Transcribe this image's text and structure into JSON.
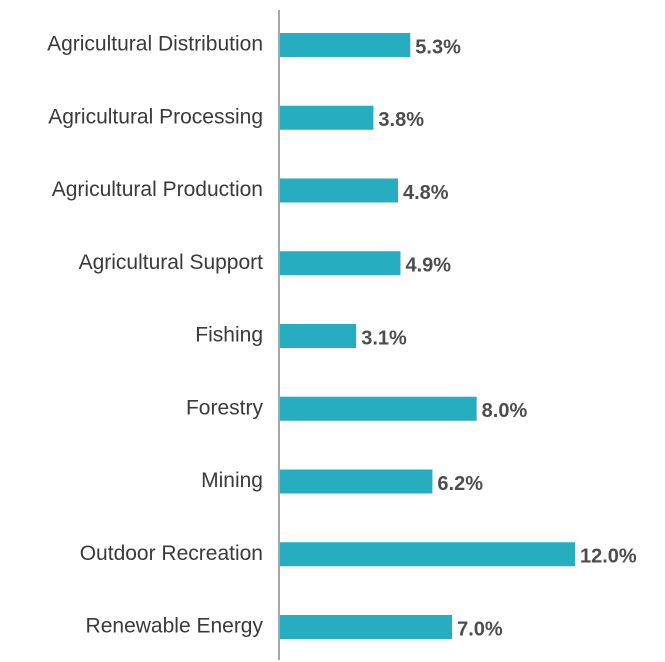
{
  "chart_data": {
    "type": "bar",
    "orientation": "horizontal",
    "categories": [
      "Agricultural Distribution",
      "Agricultural Processing",
      "Agricultural Production",
      "Agricultural Support",
      "Fishing",
      "Forestry",
      "Mining",
      "Outdoor Recreation",
      "Renewable Energy"
    ],
    "values": [
      5.3,
      3.8,
      4.8,
      4.9,
      3.1,
      8.0,
      6.2,
      12.0,
      7.0
    ],
    "value_labels": [
      "5.3%",
      "3.8%",
      "4.8%",
      "4.9%",
      "3.1%",
      "8.0%",
      "6.2%",
      "12.0%",
      "7.0%"
    ],
    "color": "#27adc0"
  }
}
